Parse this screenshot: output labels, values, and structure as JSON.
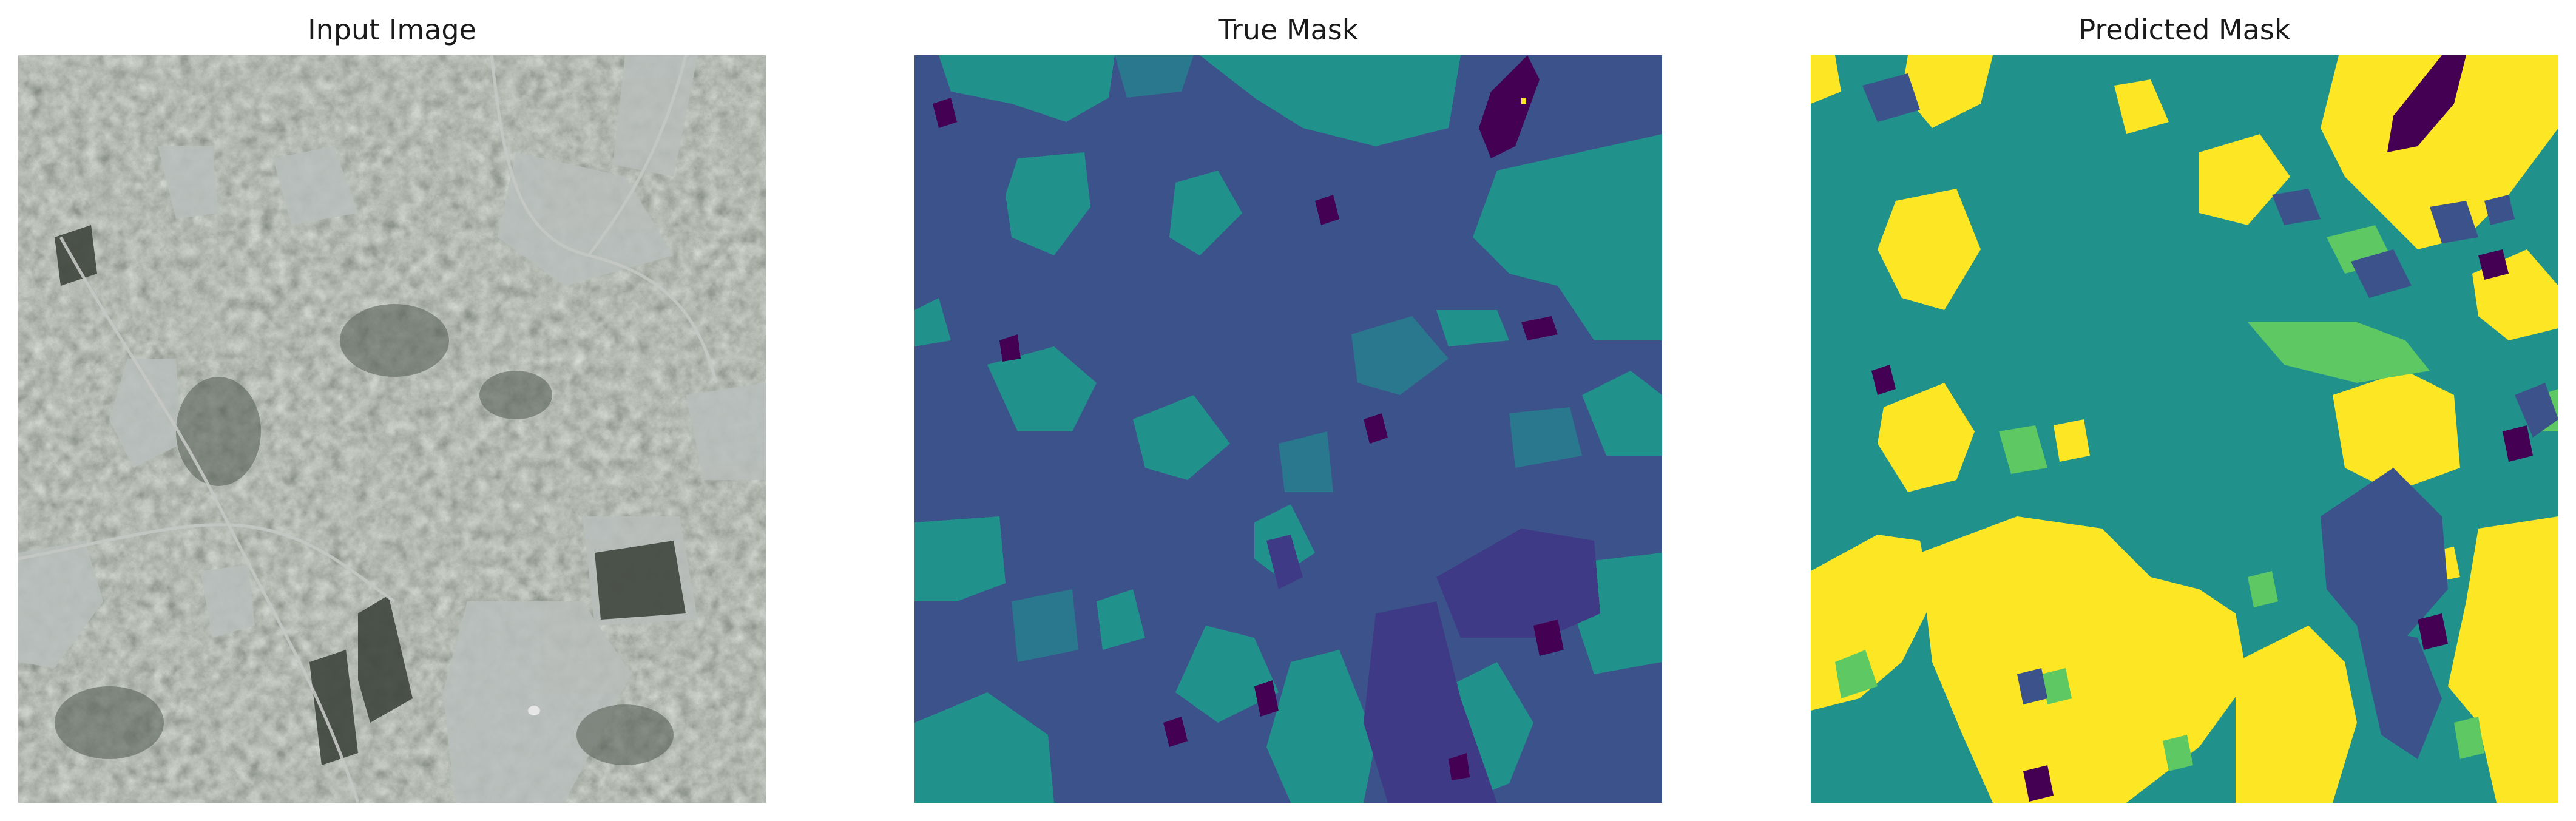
{
  "figure": {
    "panels": [
      {
        "title": "Input Image",
        "content": "aerial photograph, grayscale-green terrain with fields and paths"
      },
      {
        "title": "True Mask",
        "content": "segmentation mask, viridis colormap"
      },
      {
        "title": "Predicted Mask",
        "content": "segmentation mask, viridis colormap"
      }
    ]
  },
  "colors": {
    "class_0": "#440154",
    "class_1": "#3b528b",
    "class_2": "#21918c",
    "class_3": "#5ec962",
    "class_4": "#fde725",
    "photo_base": "#8c9387",
    "photo_light": "#bfc3c2",
    "photo_dark": "#4a5247"
  }
}
